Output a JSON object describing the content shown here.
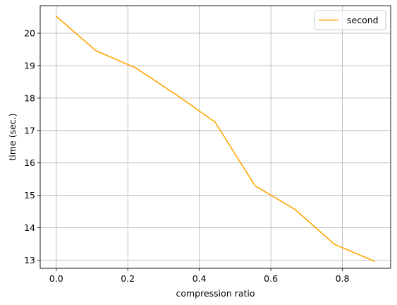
{
  "chart_data": {
    "type": "line",
    "title": "",
    "xlabel": "compression ratio",
    "ylabel": "time (sec.)",
    "xlim": [
      -0.045,
      0.935
    ],
    "ylim": [
      12.75,
      20.85
    ],
    "xticks": [
      0.0,
      0.2,
      0.4,
      0.6,
      0.8
    ],
    "xtick_labels": [
      "0.0",
      "0.2",
      "0.4",
      "0.6",
      "0.8"
    ],
    "yticks": [
      13,
      14,
      15,
      16,
      17,
      18,
      19,
      20
    ],
    "ytick_labels": [
      "13",
      "14",
      "15",
      "16",
      "17",
      "18",
      "19",
      "20"
    ],
    "grid": true,
    "legend_position": "top-right",
    "series": [
      {
        "name": "second",
        "color": "#FFA500",
        "x": [
          0.0,
          0.111,
          0.222,
          0.333,
          0.444,
          0.556,
          0.667,
          0.778,
          0.889
        ],
        "y": [
          20.52,
          19.46,
          18.93,
          18.12,
          17.26,
          15.29,
          14.57,
          13.49,
          12.97
        ]
      }
    ]
  }
}
